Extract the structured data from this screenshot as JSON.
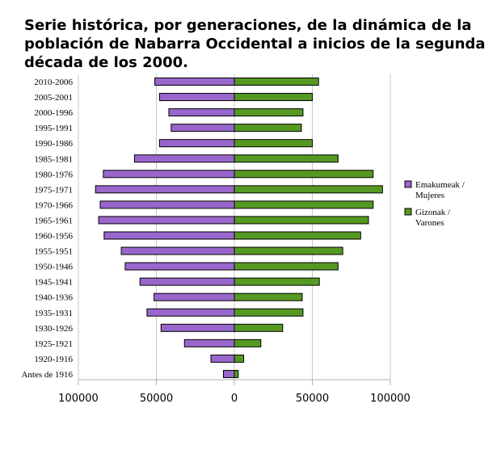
{
  "chart_data": {
    "type": "bar",
    "orientation": "horizontal",
    "title": "Serie histórica, por generaciones, de la dinámica de la\npoblación de Nabarra Occidental a inicios de la segunda\ndécada de los 2000.",
    "categories": [
      "2010-2006",
      "2005-2001",
      "2000-1996",
      "1995-1991",
      "1990-1986",
      "1985-1981",
      "1980-1976",
      "1975-1971",
      "1970-1966",
      "1965-1961",
      "1960-1956",
      "1955-1951",
      "1950-1946",
      "1945-1941",
      "1940-1936",
      "1935-1931",
      "1930-1926",
      "1925-1921",
      "1920-1916",
      "Antes de 1916"
    ],
    "series": [
      {
        "name": "Emakumeak / Mujeres",
        "legend_lines": [
          "Emakumeak /",
          "Mujeres"
        ],
        "color": "#9966cc",
        "values": [
          51000,
          48000,
          42000,
          40500,
          48000,
          64000,
          84000,
          89000,
          86000,
          87000,
          83500,
          72500,
          70000,
          60500,
          51500,
          56000,
          47000,
          32000,
          15000,
          7000
        ]
      },
      {
        "name": "Gizonak / Varones",
        "legend_lines": [
          "Gizonak /",
          "Varones"
        ],
        "color": "#559922",
        "values": [
          54000,
          50000,
          44000,
          43000,
          50000,
          66500,
          89000,
          95000,
          89000,
          86000,
          81000,
          69500,
          66500,
          54500,
          43500,
          44000,
          31000,
          17000,
          6000,
          2500
        ]
      }
    ],
    "xlim": [
      -100000,
      100000
    ],
    "x_ticks": [
      -100000,
      -50000,
      0,
      50000,
      100000
    ],
    "x_tick_labels": [
      "100000",
      "50000",
      "0",
      "50000",
      "100000"
    ],
    "grid": "vertical",
    "legend_position": "right"
  }
}
